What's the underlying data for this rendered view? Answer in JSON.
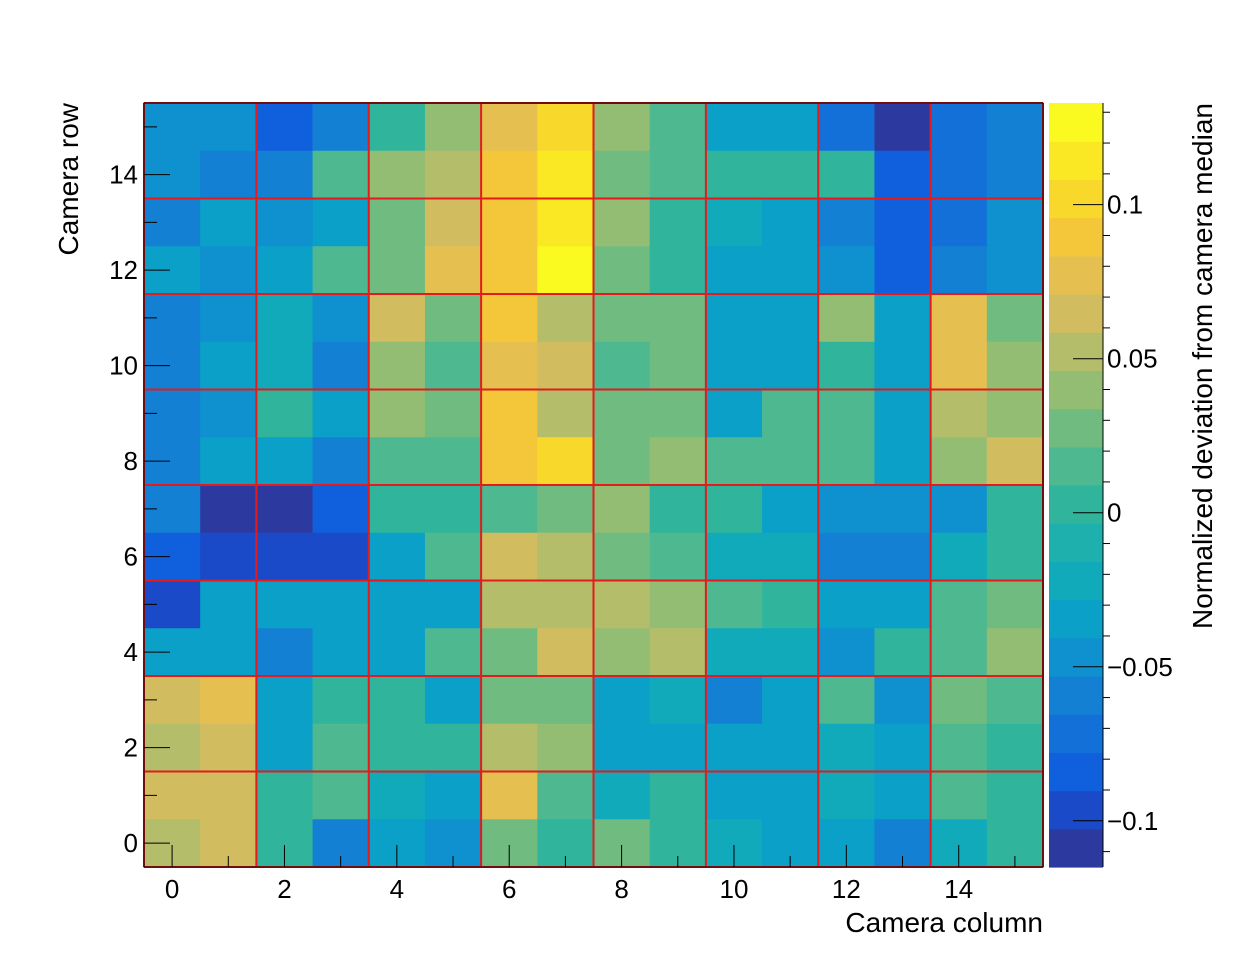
{
  "chart_data": {
    "type": "heatmap",
    "title": "",
    "xlabel": "Camera column",
    "ylabel": "Camera row",
    "colorbar_label": "Normalized deviation from camera median",
    "xlim": [
      -0.5,
      15.5
    ],
    "ylim": [
      -0.5,
      15.5
    ],
    "zlim": [
      -0.115,
      0.133
    ],
    "x_ticks": [
      0,
      2,
      4,
      6,
      8,
      10,
      12,
      14
    ],
    "x_tick_labels": [
      "0",
      "2",
      "4",
      "6",
      "8",
      "10",
      "12",
      "14"
    ],
    "y_ticks": [
      0,
      2,
      4,
      6,
      8,
      10,
      12,
      14
    ],
    "y_tick_labels": [
      "0",
      "2",
      "4",
      "6",
      "8",
      "10",
      "12",
      "14"
    ],
    "z_ticks": [
      -0.1,
      -0.05,
      0,
      0.05,
      0.1
    ],
    "z_tick_labels": [
      "−0.1",
      "−0.05",
      "0",
      "0.05",
      "0.1"
    ],
    "grid_lines_every": 2,
    "grid_color": "#e41a1c",
    "palette": [
      "#2c3aa0",
      "#1a4ac8",
      "#1060dd",
      "#1270d8",
      "#1480d4",
      "#0f90cf",
      "#0aa0c8",
      "#10aabb",
      "#1db0ac",
      "#30b59c",
      "#4eb890",
      "#70bb80",
      "#94bd74",
      "#b3bd6a",
      "#d1bd60",
      "#e5c050",
      "#f4c73a",
      "#f9d82c",
      "#fae825",
      "#faf920"
    ],
    "rows_top_to_bottom": [
      15,
      14,
      13,
      12,
      11,
      10,
      9,
      8,
      7,
      6,
      5,
      4,
      3,
      2,
      1,
      0
    ],
    "values": [
      [
        -0.052,
        -0.052,
        -0.085,
        -0.062,
        0.005,
        0.04,
        0.072,
        0.1,
        0.04,
        0.015,
        -0.04,
        -0.04,
        -0.075,
        -0.115,
        -0.075,
        -0.062
      ],
      [
        -0.052,
        -0.062,
        -0.062,
        0.015,
        0.04,
        0.055,
        0.09,
        0.12,
        0.025,
        0.015,
        0.005,
        0.005,
        0.005,
        -0.085,
        -0.075,
        -0.062
      ],
      [
        -0.062,
        -0.04,
        -0.052,
        -0.03,
        0.025,
        0.065,
        0.09,
        0.12,
        0.04,
        0.005,
        -0.02,
        -0.03,
        -0.062,
        -0.085,
        -0.075,
        -0.052
      ],
      [
        -0.04,
        -0.052,
        -0.03,
        0.015,
        0.025,
        0.08,
        0.09,
        0.133,
        0.025,
        0.005,
        -0.03,
        -0.04,
        -0.052,
        -0.085,
        -0.062,
        -0.052
      ],
      [
        -0.062,
        -0.052,
        -0.02,
        -0.052,
        0.065,
        0.025,
        0.09,
        0.055,
        0.025,
        0.025,
        -0.04,
        -0.03,
        0.04,
        -0.03,
        0.08,
        0.025
      ],
      [
        -0.062,
        -0.04,
        -0.02,
        -0.062,
        0.04,
        0.015,
        0.08,
        0.065,
        0.015,
        0.025,
        -0.04,
        -0.03,
        0.005,
        -0.03,
        0.08,
        0.04
      ],
      [
        -0.062,
        -0.052,
        0.005,
        -0.04,
        0.04,
        0.025,
        0.09,
        0.055,
        0.025,
        0.025,
        -0.03,
        0.015,
        0.015,
        -0.04,
        0.055,
        0.04
      ],
      [
        -0.062,
        -0.04,
        -0.04,
        -0.062,
        0.015,
        0.015,
        0.09,
        0.1,
        0.025,
        0.04,
        0.015,
        0.015,
        0.015,
        -0.03,
        0.04,
        0.065
      ],
      [
        -0.062,
        -0.115,
        -0.115,
        -0.085,
        0.005,
        0.005,
        0.015,
        0.025,
        0.04,
        0.005,
        0.005,
        -0.04,
        -0.052,
        -0.052,
        -0.052,
        0.005
      ],
      [
        -0.085,
        -0.1,
        -0.1,
        -0.1,
        -0.03,
        0.015,
        0.065,
        0.055,
        0.025,
        0.015,
        -0.02,
        -0.02,
        -0.062,
        -0.062,
        -0.02,
        0.005
      ],
      [
        -0.1,
        -0.04,
        -0.04,
        -0.04,
        -0.04,
        -0.04,
        0.055,
        0.055,
        0.055,
        0.04,
        0.015,
        0.005,
        -0.04,
        -0.04,
        0.015,
        0.025
      ],
      [
        -0.03,
        -0.04,
        -0.062,
        -0.04,
        -0.03,
        0.015,
        0.025,
        0.065,
        0.04,
        0.055,
        -0.02,
        -0.02,
        -0.052,
        0.005,
        0.015,
        0.04
      ],
      [
        0.065,
        0.08,
        -0.03,
        0.005,
        0.005,
        -0.04,
        0.025,
        0.025,
        -0.03,
        -0.02,
        -0.062,
        -0.03,
        0.015,
        -0.052,
        0.025,
        0.015
      ],
      [
        0.055,
        0.065,
        -0.03,
        0.015,
        0.005,
        0.005,
        0.055,
        0.04,
        -0.04,
        -0.03,
        -0.03,
        -0.03,
        -0.02,
        -0.04,
        0.015,
        0.005
      ],
      [
        0.065,
        0.065,
        0.005,
        0.015,
        -0.02,
        -0.04,
        0.075,
        0.015,
        -0.02,
        0.005,
        -0.04,
        -0.03,
        -0.02,
        -0.04,
        0.015,
        0.005
      ],
      [
        0.055,
        0.065,
        0.005,
        -0.062,
        -0.03,
        -0.052,
        0.025,
        0.005,
        0.025,
        0.005,
        -0.02,
        -0.03,
        -0.04,
        -0.062,
        -0.02,
        0.005
      ]
    ]
  }
}
